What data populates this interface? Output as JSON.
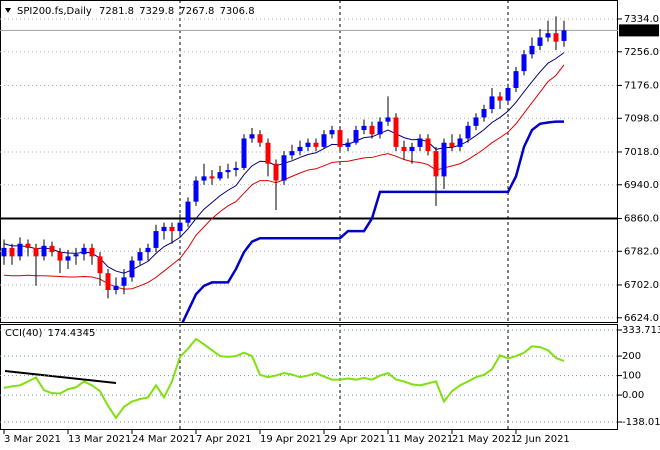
{
  "chart_data": {
    "type": "candlestick",
    "title": "SPI200.fs,Daily",
    "ohlc": [
      [
        6770,
        6810,
        6750,
        6790
      ],
      [
        6790,
        6800,
        6750,
        6770
      ],
      [
        6770,
        6815,
        6760,
        6800
      ],
      [
        6800,
        6810,
        6770,
        6790
      ],
      [
        6790,
        6800,
        6700,
        6770
      ],
      [
        6770,
        6810,
        6760,
        6795
      ],
      [
        6795,
        6805,
        6770,
        6780
      ],
      [
        6780,
        6790,
        6730,
        6760
      ],
      [
        6760,
        6785,
        6740,
        6770
      ],
      [
        6770,
        6790,
        6750,
        6775
      ],
      [
        6775,
        6800,
        6760,
        6790
      ],
      [
        6790,
        6800,
        6750,
        6770
      ],
      [
        6770,
        6780,
        6700,
        6730
      ],
      [
        6730,
        6740,
        6670,
        6690
      ],
      [
        6690,
        6720,
        6680,
        6700
      ],
      [
        6700,
        6740,
        6680,
        6720
      ],
      [
        6720,
        6770,
        6710,
        6760
      ],
      [
        6760,
        6790,
        6750,
        6780
      ],
      [
        6780,
        6800,
        6760,
        6790
      ],
      [
        6790,
        6845,
        6780,
        6830
      ],
      [
        6830,
        6850,
        6810,
        6840
      ],
      [
        6840,
        6850,
        6800,
        6830
      ],
      [
        6830,
        6870,
        6820,
        6850
      ],
      [
        6850,
        6910,
        6840,
        6900
      ],
      [
        6900,
        6960,
        6890,
        6950
      ],
      [
        6950,
        6990,
        6940,
        6960
      ],
      [
        6960,
        6975,
        6940,
        6955
      ],
      [
        6955,
        6985,
        6950,
        6970
      ],
      [
        6970,
        6990,
        6955,
        6975
      ],
      [
        6975,
        6995,
        6960,
        6980
      ],
      [
        6980,
        7060,
        6975,
        7050
      ],
      [
        7050,
        7075,
        7040,
        7060
      ],
      [
        7060,
        7070,
        7030,
        7040
      ],
      [
        7040,
        7050,
        6960,
        6990
      ],
      [
        6990,
        7000,
        6880,
        6950
      ],
      [
        6950,
        7020,
        6940,
        7010
      ],
      [
        7010,
        7035,
        7000,
        7020
      ],
      [
        7020,
        7045,
        7010,
        7030
      ],
      [
        7030,
        7050,
        7020,
        7040
      ],
      [
        7040,
        7050,
        7020,
        7030
      ],
      [
        7030,
        7070,
        7025,
        7060
      ],
      [
        7060,
        7080,
        7050,
        7070
      ],
      [
        7070,
        7075,
        7020,
        7030
      ],
      [
        7030,
        7050,
        7020,
        7040
      ],
      [
        7040,
        7080,
        7035,
        7070
      ],
      [
        7070,
        7095,
        7060,
        7080
      ],
      [
        7080,
        7090,
        7050,
        7060
      ],
      [
        7060,
        7100,
        7050,
        7090
      ],
      [
        7090,
        7150,
        7080,
        7100
      ],
      [
        7100,
        7110,
        7020,
        7030
      ],
      [
        7030,
        7045,
        7000,
        7020
      ],
      [
        7020,
        7040,
        6990,
        7030
      ],
      [
        7030,
        7060,
        7020,
        7050
      ],
      [
        7050,
        7060,
        7010,
        7020
      ],
      [
        7020,
        7030,
        6890,
        6960
      ],
      [
        6960,
        7050,
        6930,
        7040
      ],
      [
        7040,
        7060,
        7020,
        7030
      ],
      [
        7030,
        7060,
        7020,
        7050
      ],
      [
        7050,
        7090,
        7040,
        7080
      ],
      [
        7080,
        7110,
        7070,
        7100
      ],
      [
        7100,
        7130,
        7090,
        7120
      ],
      [
        7120,
        7170,
        7110,
        7150
      ],
      [
        7150,
        7160,
        7120,
        7140
      ],
      [
        7140,
        7180,
        7130,
        7170
      ],
      [
        7170,
        7220,
        7160,
        7210
      ],
      [
        7210,
        7260,
        7200,
        7250
      ],
      [
        7250,
        7290,
        7240,
        7270
      ],
      [
        7270,
        7310,
        7260,
        7290
      ],
      [
        7290,
        7330,
        7280,
        7300
      ],
      [
        7300,
        7340,
        7260,
        7280
      ],
      [
        7281.8,
        7329.8,
        7267.8,
        7306.8
      ]
    ],
    "colors": {
      "up": "#0000ff",
      "down": "#ff0000",
      "wick": "#000000"
    },
    "xticks": [
      {
        "value": 0,
        "label": "3 Mar 2021"
      },
      {
        "value": 8,
        "label": "13 Mar 2021"
      },
      {
        "value": 16,
        "label": "24 Mar 2021"
      },
      {
        "value": 24,
        "label": "7 Apr 2021"
      },
      {
        "value": 32,
        "label": "19 Apr 2021"
      },
      {
        "value": 40,
        "label": "29 Apr 2021"
      },
      {
        "value": 48,
        "label": "11 May 2021"
      },
      {
        "value": 56,
        "label": "21 May 2021"
      },
      {
        "value": 64,
        "label": "2 Jun 2021"
      }
    ],
    "ylim": [
      6614,
      7379
    ],
    "yticks": [
      {
        "value": 6624,
        "label": "6624.0"
      },
      {
        "value": 6702,
        "label": "6702.0"
      },
      {
        "value": 6782,
        "label": "6782.0"
      },
      {
        "value": 6860,
        "label": "6860.0"
      },
      {
        "value": 6940,
        "label": "6940.0"
      },
      {
        "value": 7018,
        "label": "7018.0"
      },
      {
        "value": 7098,
        "label": "7098.0"
      },
      {
        "value": 7176,
        "label": "7176.0"
      },
      {
        "value": 7256,
        "label": "7256.0"
      },
      {
        "value": 7334,
        "label": "7334.0"
      }
    ],
    "grid": true,
    "hline": 6860,
    "lines": [
      {
        "color": "#000080",
        "width": 1,
        "values": [
          6800,
          6795,
          6795,
          6793,
          6788,
          6790,
          6787,
          6780,
          6778,
          6777,
          6780,
          6778,
          6765,
          6745,
          6735,
          6730,
          6738,
          6748,
          6758,
          6777,
          6793,
          6803,
          6815,
          6835,
          6860,
          6882,
          6898,
          6914,
          6927,
          6938,
          6964,
          6985,
          6996,
          6995,
          6985,
          6991,
          6997,
          7005,
          7012,
          7016,
          7026,
          7036,
          7035,
          7036,
          7044,
          7052,
          7054,
          7062,
          7070,
          7061,
          7052,
          7047,
          7048,
          7042,
          7024,
          7028,
          7029,
          7034,
          7044,
          7057,
          7071,
          7088,
          7100,
          7115,
          7136,
          7161,
          7185,
          7208,
          7229,
          7240,
          7254
        ]
      },
      {
        "color": "#e00000",
        "width": 1,
        "values": [
          6725,
          6724,
          6724,
          6725,
          6724,
          6724,
          6723,
          6722,
          6721,
          6721,
          6722,
          6721,
          6716,
          6705,
          6697,
          6692,
          6693,
          6700,
          6708,
          6720,
          6735,
          6750,
          6765,
          6790,
          6820,
          6840,
          6860,
          6876,
          6890,
          6900,
          6920,
          6940,
          6950,
          6950,
          6945,
          6952,
          6960,
          6968,
          6975,
          6978,
          6985,
          6993,
          6995,
          6996,
          7000,
          7004,
          7005,
          7010,
          7014,
          7008,
          7000,
          6995,
          6993,
          6988,
          6975,
          6980,
          6985,
          6990,
          7000,
          7012,
          7025,
          7040,
          7052,
          7065,
          7085,
          7110,
          7135,
          7160,
          7185,
          7200,
          7225
        ]
      },
      {
        "color": "#0000c8",
        "width": 2.5,
        "values": [
          null,
          null,
          null,
          null,
          null,
          null,
          null,
          null,
          null,
          null,
          null,
          null,
          null,
          null,
          null,
          null,
          null,
          null,
          null,
          null,
          null,
          null,
          6600,
          6640,
          6680,
          6700,
          6708,
          6708,
          6708,
          6740,
          6780,
          6805,
          6813,
          6813,
          6813,
          6813,
          6813,
          6813,
          6813,
          6813,
          6813,
          6813,
          6813,
          6830,
          6830,
          6830,
          6860,
          6923,
          6923,
          6923,
          6923,
          6923,
          6923,
          6923,
          6923,
          6923,
          6923,
          6923,
          6923,
          6923,
          6923,
          6923,
          6923,
          6923,
          6960,
          7030,
          7070,
          7085,
          7088,
          7090,
          7090
        ]
      }
    ],
    "indicator": {
      "type": "line",
      "name": "CCI(40)",
      "color": "#80e010",
      "ylim": [
        -138.0124,
        333.7135
      ],
      "yticks": [
        -138.0124,
        {
          "value": 0,
          "label": "0.00"
        },
        100,
        200,
        333.7135
      ],
      "values": [
        37,
        45,
        50,
        70,
        90,
        25,
        10,
        8,
        30,
        40,
        70,
        50,
        20,
        -55,
        -117,
        -60,
        -33,
        -20,
        -12,
        50,
        -12,
        70,
        196,
        238,
        288,
        260,
        230,
        200,
        196,
        200,
        217,
        200,
        104,
        92,
        100,
        113,
        105,
        92,
        100,
        113,
        95,
        79,
        79,
        85,
        79,
        88,
        79,
        100,
        113,
        80,
        70,
        55,
        50,
        60,
        70,
        -33,
        20,
        50,
        70,
        92,
        104,
        133,
        204,
        188,
        200,
        217,
        250,
        246,
        230,
        190,
        174.4345
      ]
    }
  }
}
